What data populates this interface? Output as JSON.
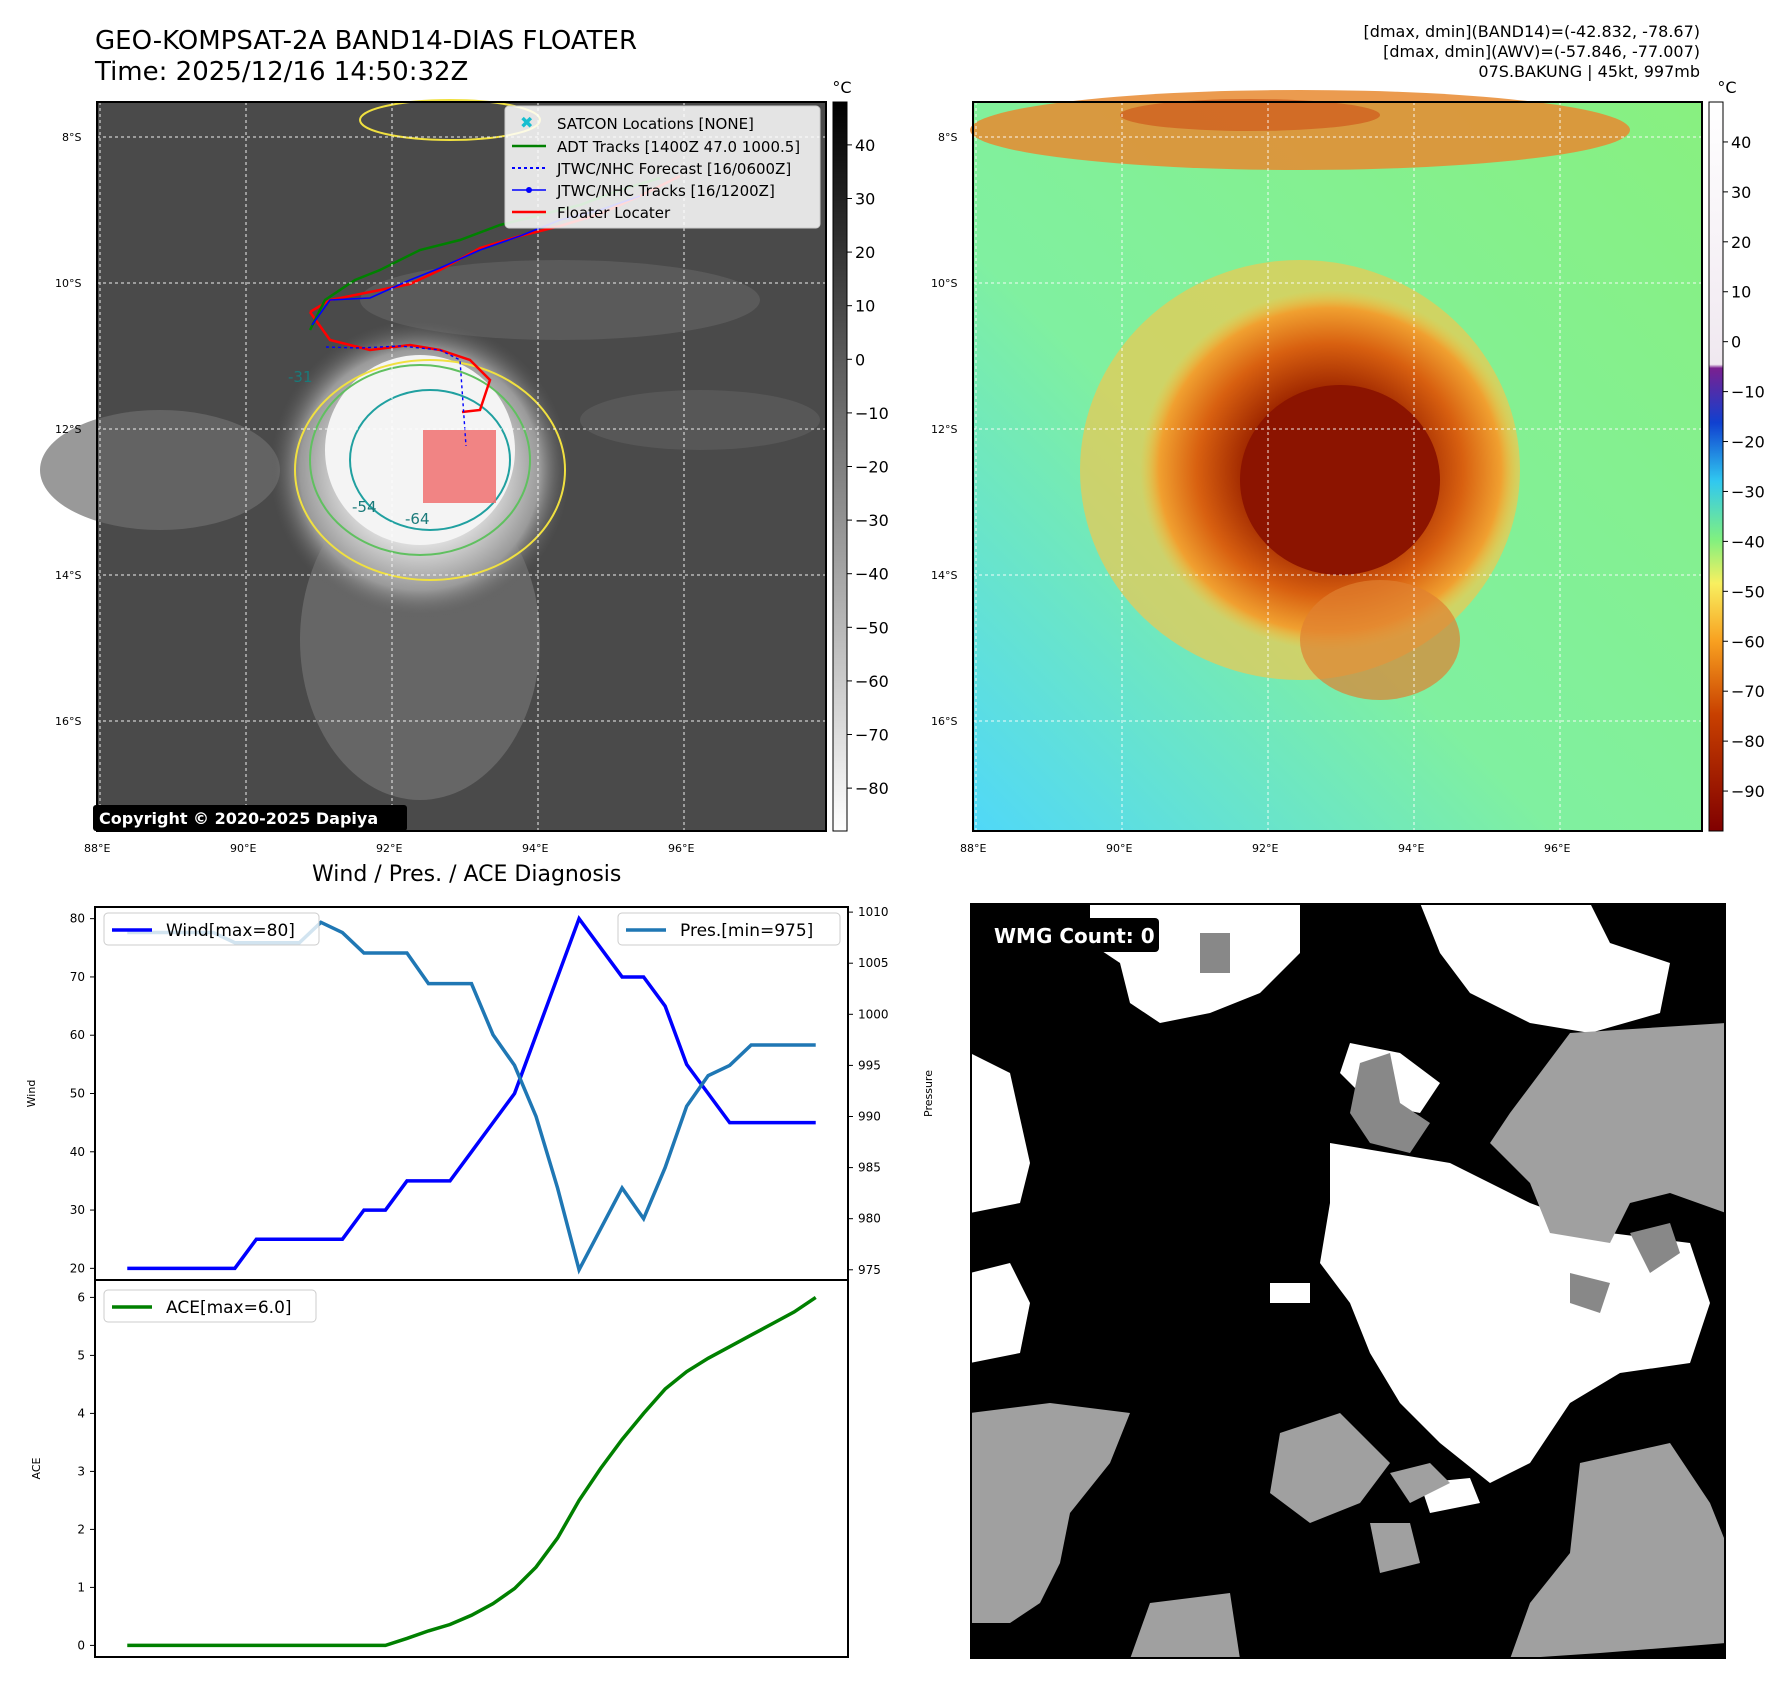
{
  "header": {
    "title_line1": "GEO-KOMPSAT-2A BAND14-DIAS FLOATER",
    "title_line2": "Time: 2025/12/16 14:50:32Z",
    "stats_line1": "[dmax, dmin](BAND14)=(-42.832, -78.67)",
    "stats_line2": "[dmax, dmin](AWV)=(-57.846, -77.007)",
    "stats_line3": "07S.BAKUNG | 45kt, 997mb"
  },
  "ir_map": {
    "unit": "°C",
    "lat_labels": [
      "8°S",
      "10°S",
      "12°S",
      "14°S",
      "16°S"
    ],
    "lon_labels": [
      "88°E",
      "90°E",
      "92°E",
      "94°E",
      "96°E"
    ],
    "colorbar_ticks": [
      "40",
      "30",
      "20",
      "10",
      "0",
      "−10",
      "−20",
      "−30",
      "−40",
      "−50",
      "−60",
      "−70",
      "−80"
    ],
    "contour_labels": [
      "-31",
      "-54",
      "-64"
    ],
    "copyright": "Copyright © 2020-2025 Dapiya",
    "legend": [
      "SATCON Locations [NONE]",
      "ADT Tracks [1400Z 47.0 1000.5]",
      "JTWC/NHC Forecast [16/0600Z]",
      "JTWC/NHC Tracks [16/1200Z]",
      "Floater Locater"
    ]
  },
  "awv_map": {
    "unit": "°C",
    "lat_labels": [
      "8°S",
      "10°S",
      "12°S",
      "14°S",
      "16°S"
    ],
    "lon_labels": [
      "88°E",
      "90°E",
      "92°E",
      "94°E",
      "96°E"
    ],
    "colorbar_ticks": [
      "40",
      "30",
      "20",
      "10",
      "0",
      "−10",
      "−20",
      "−30",
      "−40",
      "−50",
      "−60",
      "−70",
      "−80",
      "−90"
    ]
  },
  "wmg": {
    "label": "WMG Count: 0"
  },
  "colors": {
    "wind": "#0000ff",
    "pressure": "#1f77b4",
    "ace": "#008000",
    "floater": "#ff0000",
    "adt": "#008000"
  },
  "chart_data": [
    {
      "type": "line",
      "title": "Wind / Pres. / ACE Diagnosis",
      "ylabel": "Wind",
      "y2label": "Pressure",
      "ylim": [
        18,
        82
      ],
      "y2lim": [
        974,
        1010.5
      ],
      "yticks": [
        20,
        30,
        40,
        50,
        60,
        70,
        80
      ],
      "y2ticks": [
        975,
        980,
        985,
        990,
        995,
        1000,
        1005,
        1010
      ],
      "x": [
        0,
        1,
        2,
        3,
        4,
        5,
        6,
        7,
        8,
        9,
        10,
        11,
        12,
        13,
        14,
        15,
        16,
        17,
        18,
        19,
        20,
        21,
        22,
        23,
        24,
        25,
        26,
        27,
        28,
        29,
        30,
        31,
        32
      ],
      "series": [
        {
          "name": "Wind[max=80]",
          "axis": "left",
          "values": [
            20,
            20,
            20,
            20,
            20,
            20,
            25,
            25,
            25,
            25,
            25,
            30,
            30,
            35,
            35,
            35,
            40,
            45,
            50,
            60,
            70,
            80,
            75,
            70,
            70,
            65,
            55,
            50,
            45,
            45,
            45,
            45,
            45
          ]
        },
        {
          "name": "Pres.[min=975]",
          "axis": "right",
          "values": [
            1008,
            1008,
            1008,
            1008,
            1008,
            1007,
            1007,
            1007,
            1007,
            1009,
            1008,
            1006,
            1006,
            1006,
            1003,
            1003,
            1003,
            998,
            995,
            990,
            983,
            975,
            979,
            983,
            980,
            985,
            991,
            994,
            995,
            997,
            997,
            997,
            997
          ]
        }
      ]
    },
    {
      "type": "line",
      "ylabel": "ACE",
      "ylim": [
        -0.2,
        6.3
      ],
      "yticks": [
        0,
        1,
        2,
        3,
        4,
        5,
        6
      ],
      "x": [
        0,
        1,
        2,
        3,
        4,
        5,
        6,
        7,
        8,
        9,
        10,
        11,
        12,
        13,
        14,
        15,
        16,
        17,
        18,
        19,
        20,
        21,
        22,
        23,
        24,
        25,
        26,
        27,
        28,
        29,
        30,
        31,
        32
      ],
      "series": [
        {
          "name": "ACE[max=6.0]",
          "values": [
            0,
            0,
            0,
            0,
            0,
            0,
            0,
            0,
            0,
            0,
            0,
            0,
            0,
            0.12,
            0.25,
            0.36,
            0.52,
            0.72,
            0.98,
            1.35,
            1.85,
            2.5,
            3.05,
            3.55,
            4.0,
            4.42,
            4.72,
            4.95,
            5.15,
            5.35,
            5.55,
            5.75,
            6.0
          ]
        }
      ]
    }
  ]
}
